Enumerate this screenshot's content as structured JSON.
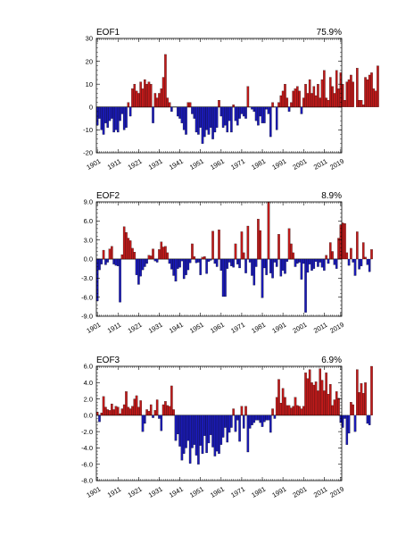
{
  "chart_data": [
    {
      "type": "bar",
      "title": "EOF1",
      "right_label": "75.9%",
      "x_start": 1901,
      "x_end": 2019,
      "xticks": [
        "1901",
        "1911",
        "1921",
        "1931",
        "1941",
        "1951",
        "1961",
        "1971",
        "1981",
        "1991",
        "2001",
        "2011",
        "2019"
      ],
      "yticks": [
        "-20",
        "-10",
        "0",
        "10",
        "20",
        "30"
      ],
      "ylim": [
        -20,
        30
      ],
      "pos_color": "#c11a1a",
      "neg_color": "#1a1ab5",
      "values": [
        -8,
        -5,
        -10,
        -12,
        -7,
        -9,
        -6,
        -5,
        -11,
        -10,
        -11,
        -6,
        -3,
        -10,
        -9,
        2,
        -4,
        8,
        10,
        7,
        6,
        11,
        8,
        12,
        10,
        11,
        10,
        -7,
        6,
        4,
        6,
        8,
        13,
        23,
        4,
        2,
        -2,
        0,
        0,
        -4,
        -5,
        -7,
        -10,
        -12,
        2,
        2,
        -3,
        -5,
        -11,
        -12,
        -9,
        -16,
        -13,
        -10,
        -12,
        -9,
        -14,
        -11,
        -9,
        3,
        -4,
        -9,
        -8,
        -11,
        -6,
        -11,
        1,
        -6,
        -8,
        -5,
        -3,
        -4,
        -5,
        9,
        0,
        -1,
        -2,
        -6,
        -8,
        -4,
        -7,
        -7,
        -1,
        -3,
        -13,
        2,
        0,
        -10,
        2,
        5,
        7,
        10,
        4,
        -2,
        2,
        7,
        8,
        9,
        7,
        -3,
        4,
        10,
        6,
        12,
        6,
        9,
        5,
        10,
        4,
        12,
        16,
        4,
        3,
        13,
        9,
        6,
        16,
        8,
        15,
        10,
        3,
        11,
        12,
        14,
        11,
        0,
        17,
        3,
        3,
        1,
        13,
        12,
        14,
        15,
        8,
        7,
        18
      ]
    },
    {
      "type": "bar",
      "title": "EOF2",
      "right_label": "8.9%",
      "x_start": 1901,
      "x_end": 2019,
      "xticks": [
        "1901",
        "1911",
        "1921",
        "1931",
        "1941",
        "1951",
        "1961",
        "1971",
        "1981",
        "1991",
        "2001",
        "2011",
        "2019"
      ],
      "yticks": [
        "-9.0",
        "-6.0",
        "-3.0",
        "0.0",
        "3.0",
        "6.0",
        "9.0"
      ],
      "ylim": [
        -9,
        9
      ],
      "pos_color": "#c11a1a",
      "neg_color": "#1a1ab5",
      "values": [
        -6.6,
        -1.7,
        -0.8,
        1.4,
        -0.9,
        -0.5,
        1.6,
        2.0,
        -0.8,
        -1.0,
        -1.1,
        -6.8,
        0.7,
        5.1,
        4.2,
        3.3,
        2.9,
        1.7,
        1.1,
        -2.5,
        -4.0,
        -2.7,
        -1.7,
        -1.2,
        -0.7,
        0.6,
        0.5,
        1.6,
        -0.3,
        -0.5,
        1.5,
        2.7,
        1.9,
        2.0,
        1.0,
        -0.7,
        -1.6,
        -2.6,
        -3.5,
        -1.5,
        -1.3,
        -0.3,
        -3.1,
        -2.5,
        -1.7,
        -0.6,
        2.4,
        0.4,
        -0.6,
        -0.5,
        -2.5,
        0.3,
        0.4,
        -2.3,
        -0.4,
        -0.2,
        4.4,
        -0.7,
        -1.2,
        4.6,
        -1.8,
        -5.9,
        -5.9,
        -1.5,
        -0.5,
        -1.1,
        -1.3,
        2.4,
        -0.8,
        -1.4,
        4.3,
        1.0,
        -2.2,
        5.2,
        -0.5,
        -2.6,
        -4.1,
        -1.2,
        6.3,
        4.5,
        -6.1,
        -1.4,
        -2.5,
        9.0,
        -2.2,
        -3.0,
        -0.5,
        -1.2,
        3.9,
        -2.7,
        -1.8,
        -2.3,
        -0.4,
        4.8,
        2.4,
        1.0,
        -1.2,
        -0.7,
        -0.5,
        -3.2,
        -0.7,
        -8.4,
        -2.1,
        -0.8,
        -1.8,
        -1.5,
        -0.4,
        -1.2,
        -0.5,
        -1.3,
        -1.8,
        0.6,
        -0.7,
        2.6,
        1.2,
        -0.9,
        -1.5,
        3.3,
        5.4,
        5.7,
        5.6,
        1.0,
        -1.0,
        1.7,
        -0.5,
        -2.6,
        4.3,
        -1.6,
        -1.1,
        2.6,
        0.3,
        -0.9,
        -2.0,
        1.5
      ]
    },
    {
      "type": "bar",
      "title": "EOF3",
      "right_label": "6.9%",
      "x_start": 1901,
      "x_end": 2019,
      "xticks": [
        "1901",
        "1911",
        "1921",
        "1931",
        "1941",
        "1951",
        "1961",
        "1971",
        "1981",
        "1991",
        "2001",
        "2011",
        "2019"
      ],
      "yticks": [
        "-8.0",
        "-6.0",
        "-4.0",
        "-2.0",
        "0.0",
        "2.0",
        "4.0",
        "6.0"
      ],
      "ylim": [
        -8,
        6
      ],
      "pos_color": "#c11a1a",
      "neg_color": "#1a1ab5",
      "values": [
        0.4,
        -0.8,
        0.3,
        2.3,
        1.0,
        0.7,
        0.6,
        1.4,
        0.7,
        1.1,
        1.0,
        0.2,
        0.8,
        1.3,
        2.9,
        1.0,
        0.8,
        1.1,
        2.0,
        2.4,
        1.0,
        1.8,
        -2.0,
        -1.0,
        0.7,
        0.5,
        1.3,
        -0.3,
        0.6,
        1.9,
        -0.4,
        -1.9,
        1.3,
        1.7,
        1.2,
        1.1,
        3.6,
        0.7,
        -3.1,
        -2.3,
        -3.8,
        -5.5,
        -4.7,
        -4.0,
        -3.1,
        -5.9,
        -4.0,
        -3.6,
        -4.9,
        -6.0,
        -3.7,
        -4.7,
        -2.5,
        -4.6,
        -3.4,
        -2.4,
        -3.9,
        -5.0,
        -4.4,
        -4.7,
        -3.6,
        -2.7,
        -1.5,
        -3.3,
        -2.1,
        -1.5,
        0.8,
        -2.0,
        -0.6,
        -3.2,
        1.1,
        -1.6,
        1.1,
        -4.5,
        -1.6,
        -1.2,
        -0.9,
        -0.6,
        -0.6,
        -0.9,
        -1.4,
        -0.8,
        -0.6,
        -0.6,
        -2.1,
        0.8,
        -0.4,
        2.2,
        4.4,
        1.5,
        3.3,
        2.2,
        1.2,
        1.2,
        0.9,
        1.1,
        2.2,
        1.2,
        1.1,
        0.8,
        1.1,
        5.2,
        4.5,
        5.6,
        4.0,
        3.7,
        4.1,
        3.0,
        5.7,
        4.3,
        3.0,
        5.2,
        2.6,
        3.8,
        1.2,
        1.9,
        2.9,
        2.1,
        -0.9,
        -1.5,
        -0.4,
        -3.6,
        -2.2,
        1.6,
        1.3,
        -2.0,
        5.6,
        2.8,
        3.9,
        2.7,
        4.0,
        -1.0,
        -1.2,
        6.0
      ]
    }
  ]
}
